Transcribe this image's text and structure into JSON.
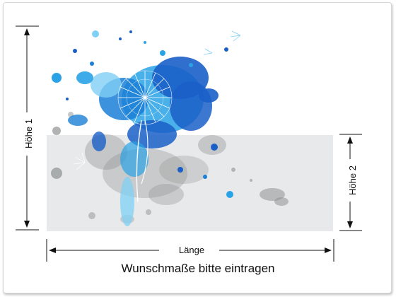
{
  "labels": {
    "height_left": "Höhe 1",
    "height_right": "Höhe 2",
    "width": "Länge",
    "caption": "Wunschmaße bitte eintragen"
  },
  "colors": {
    "panel": "#e8e9ea",
    "blue_dark": "#1a5fc8",
    "blue_mid": "#2aa2e6",
    "blue_light": "#7fd0f5",
    "gray_splash": "#8f9193",
    "dimension_line": "#111111"
  }
}
